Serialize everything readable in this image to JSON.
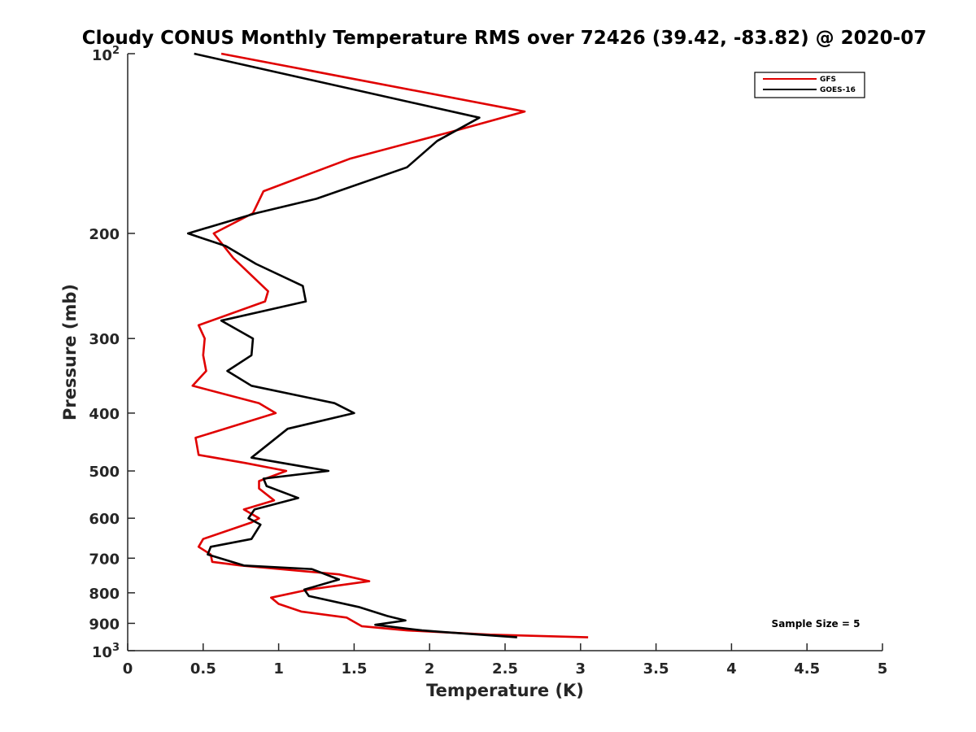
{
  "chart_data": {
    "type": "line",
    "title": "Cloudy CONUS Monthly Temperature RMS over 72426 (39.42, -83.82) @ 2020-07",
    "xlabel": "Temperature (K)",
    "ylabel": "Pressure (mb)",
    "xlim": [
      0,
      5
    ],
    "ylim": [
      100,
      1000
    ],
    "yscale": "log",
    "y_reversed": true,
    "x_ticks": [
      0,
      0.5,
      1,
      1.5,
      2,
      2.5,
      3,
      3.5,
      4,
      4.5,
      5
    ],
    "x_tick_labels": [
      "0",
      "0.5",
      "1",
      "1.5",
      "2",
      "2.5",
      "3",
      "3.5",
      "4",
      "4.5",
      "5"
    ],
    "y_ticks": [
      200,
      300,
      400,
      500,
      600,
      700,
      800,
      900
    ],
    "y_tick_labels": [
      "200",
      "300",
      "400",
      "500",
      "600",
      "700",
      "800",
      "900"
    ],
    "y_tick_top": {
      "base": "10",
      "exp": "2"
    },
    "y_tick_bottom": {
      "base": "10",
      "exp": "3"
    },
    "legend_position": "top-right",
    "annotation": "Sample Size = 5",
    "series": [
      {
        "name": "GFS",
        "color": "#e00000",
        "points": [
          [
            0.62,
            100
          ],
          [
            2.63,
            125
          ],
          [
            2.15,
            135
          ],
          [
            1.47,
            150
          ],
          [
            0.9,
            170
          ],
          [
            0.83,
            185
          ],
          [
            0.57,
            200
          ],
          [
            0.7,
            220
          ],
          [
            0.93,
            250
          ],
          [
            0.91,
            260
          ],
          [
            0.47,
            285
          ],
          [
            0.51,
            300
          ],
          [
            0.5,
            320
          ],
          [
            0.52,
            340
          ],
          [
            0.43,
            360
          ],
          [
            0.87,
            385
          ],
          [
            0.98,
            400
          ],
          [
            0.45,
            440
          ],
          [
            0.47,
            470
          ],
          [
            0.78,
            485
          ],
          [
            1.05,
            500
          ],
          [
            0.87,
            520
          ],
          [
            0.87,
            535
          ],
          [
            0.97,
            560
          ],
          [
            0.77,
            580
          ],
          [
            0.87,
            600
          ],
          [
            0.82,
            610
          ],
          [
            0.5,
            650
          ],
          [
            0.47,
            670
          ],
          [
            0.55,
            690
          ],
          [
            0.56,
            710
          ],
          [
            0.75,
            720
          ],
          [
            1.4,
            745
          ],
          [
            1.6,
            765
          ],
          [
            1.2,
            790
          ],
          [
            0.95,
            815
          ],
          [
            1.0,
            835
          ],
          [
            1.15,
            860
          ],
          [
            1.45,
            880
          ],
          [
            1.55,
            910
          ],
          [
            1.85,
            925
          ],
          [
            2.4,
            940
          ],
          [
            3.05,
            950
          ]
        ]
      },
      {
        "name": "GOES-16",
        "color": "#000000",
        "points": [
          [
            0.44,
            100
          ],
          [
            2.33,
            128
          ],
          [
            2.05,
            140
          ],
          [
            1.85,
            155
          ],
          [
            1.25,
            175
          ],
          [
            0.85,
            185
          ],
          [
            0.4,
            200
          ],
          [
            0.65,
            210
          ],
          [
            0.85,
            225
          ],
          [
            1.16,
            245
          ],
          [
            1.18,
            260
          ],
          [
            0.62,
            280
          ],
          [
            0.83,
            300
          ],
          [
            0.82,
            320
          ],
          [
            0.66,
            340
          ],
          [
            0.82,
            360
          ],
          [
            1.37,
            385
          ],
          [
            1.5,
            400
          ],
          [
            1.06,
            425
          ],
          [
            0.82,
            475
          ],
          [
            1.33,
            500
          ],
          [
            0.9,
            515
          ],
          [
            0.92,
            530
          ],
          [
            1.13,
            555
          ],
          [
            0.84,
            580
          ],
          [
            0.8,
            600
          ],
          [
            0.88,
            615
          ],
          [
            0.82,
            650
          ],
          [
            0.55,
            670
          ],
          [
            0.53,
            690
          ],
          [
            0.77,
            720
          ],
          [
            1.22,
            730
          ],
          [
            1.4,
            760
          ],
          [
            1.17,
            790
          ],
          [
            1.2,
            810
          ],
          [
            1.53,
            845
          ],
          [
            1.72,
            875
          ],
          [
            1.84,
            890
          ],
          [
            1.64,
            905
          ],
          [
            1.95,
            925
          ],
          [
            2.08,
            930
          ],
          [
            2.58,
            950
          ]
        ]
      }
    ]
  }
}
